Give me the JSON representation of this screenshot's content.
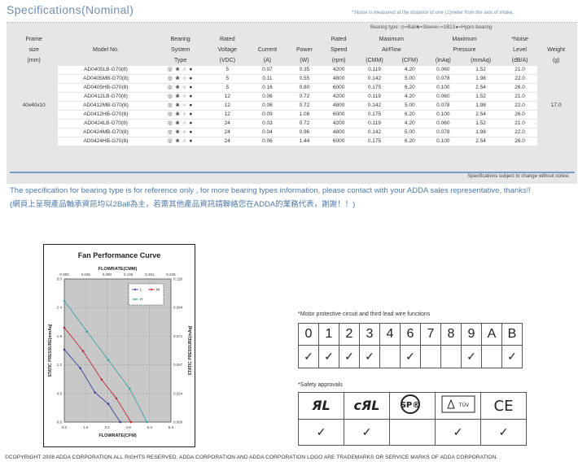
{
  "header": {
    "title": "Specifications(Nominal)",
    "noise_note": "*:Noise is measured at the distance of one (1)meter from the axis of intake.",
    "bearing_legend": "Bearing type: ◎=Ball❀=Sleeve○=1B1S●=Hypro bearing"
  },
  "spec_table": {
    "headers": [
      [
        "Frame",
        "size",
        "(mm)"
      ],
      [
        "",
        "Model No.",
        ""
      ],
      [
        "Bearing",
        "System",
        "Type"
      ],
      [
        "Rated",
        "Voltage",
        "(VDC)"
      ],
      [
        "",
        "Current",
        "(A)"
      ],
      [
        "",
        "Power",
        "(W)"
      ],
      [
        "Rated",
        "Speed",
        "(rpm)"
      ],
      [
        "Maximum",
        "AirFlow",
        ""
      ],
      [
        "Maximum",
        "Pressure",
        ""
      ],
      [
        "*Noise",
        "Level",
        "(dB/A)"
      ],
      [
        "",
        "Weight",
        "(g)"
      ]
    ],
    "airflow_units": [
      "(CMM)",
      "(CFM)"
    ],
    "pressure_units": [
      "(InAq)",
      "(mmAq)"
    ],
    "frame_size": "40x40x10",
    "weight": "17.0",
    "bearing_icons": "◎ ❀ ○ ●",
    "rows": [
      {
        "model": "AD0405LB-G70(8)",
        "voltage": "5",
        "current": "0.07",
        "power": "0.35",
        "speed": "4200",
        "cmm": "0.119",
        "cfm": "4.20",
        "inaq": "0.060",
        "mmaq": "1.52",
        "noise": "21.0"
      },
      {
        "model": "AD0405MB-G70(8)",
        "voltage": "5",
        "current": "0.11",
        "power": "0.55",
        "speed": "4800",
        "cmm": "0.142",
        "cfm": "5.00",
        "inaq": "0.078",
        "mmaq": "1.98",
        "noise": "22.0"
      },
      {
        "model": "AD0405HB-G70(8)",
        "voltage": "5",
        "current": "0.16",
        "power": "0.80",
        "speed": "6000",
        "cmm": "0.175",
        "cfm": "6.20",
        "inaq": "0.100",
        "mmaq": "2.54",
        "noise": "26.0"
      },
      {
        "model": "AD0412LB-G70(8)",
        "voltage": "12",
        "current": "0.06",
        "power": "0.72",
        "speed": "4200",
        "cmm": "0.119",
        "cfm": "4.20",
        "inaq": "0.060",
        "mmaq": "1.52",
        "noise": "21.0"
      },
      {
        "model": "AD0412MB-G70(8)",
        "voltage": "12",
        "current": "0.06",
        "power": "0.72",
        "speed": "4800",
        "cmm": "0.142",
        "cfm": "5.00",
        "inaq": "0.078",
        "mmaq": "1.98",
        "noise": "22.0"
      },
      {
        "model": "AD0412HB-G70(8)",
        "voltage": "12",
        "current": "0.09",
        "power": "1.08",
        "speed": "6000",
        "cmm": "0.175",
        "cfm": "6.20",
        "inaq": "0.100",
        "mmaq": "2.54",
        "noise": "26.0"
      },
      {
        "model": "AD0424LB-G70(8)",
        "voltage": "24",
        "current": "0.03",
        "power": "0.72",
        "speed": "4200",
        "cmm": "0.119",
        "cfm": "4.20",
        "inaq": "0.060",
        "mmaq": "1.52",
        "noise": "21.0"
      },
      {
        "model": "AD0424MB-G70(8)",
        "voltage": "24",
        "current": "0.04",
        "power": "0.96",
        "speed": "4800",
        "cmm": "0.142",
        "cfm": "5.00",
        "inaq": "0.078",
        "mmaq": "1.98",
        "noise": "22.0"
      },
      {
        "model": "AD0424HB-G70(8)",
        "voltage": "24",
        "current": "0.06",
        "power": "1.44",
        "speed": "6000",
        "cmm": "0.175",
        "cfm": "6.20",
        "inaq": "0.100",
        "mmaq": "2.54",
        "noise": "26.0"
      }
    ],
    "footnote": "Specifications subject to change without notice."
  },
  "info": {
    "english": "The specification for bearing type is for reference only , for more bearing types information, please contact with your ADDA sales representative, thanks!!",
    "chinese": "(網頁上呈現產品軸承資訊均以2Ball為主，若需其他產品資訊請聯絡您在ADDA的業務代表，謝謝！！)"
  },
  "motor_protective": {
    "label": "*Motor protective circuit and third lead wire functions",
    "codes": [
      "0",
      "1",
      "2",
      "3",
      "4",
      "6",
      "7",
      "8",
      "9",
      "A",
      "B"
    ],
    "checked": [
      true,
      true,
      true,
      true,
      false,
      true,
      false,
      false,
      true,
      false,
      true
    ],
    "check_mark": "✓"
  },
  "safety": {
    "label": "*Safety approvals",
    "logos": [
      "UR",
      "cUR",
      "CSA",
      "TUV",
      "CE"
    ],
    "logo_text": {
      "ur": "ЯL",
      "cur": "cЯL",
      "csa": "SP®",
      "tuv": "TÜV",
      "ce": "CE"
    },
    "checked": [
      true,
      true,
      false,
      true,
      true
    ],
    "check_mark": "✓"
  },
  "chart_data": {
    "type": "line",
    "title": "Fan Performance Curve",
    "xlabel": "FLOWRATE(CFM)",
    "x2label": "FLOWRATE(CMM)",
    "ylabel": "STATIC PRESSURE(mmAq)",
    "y2label": "STATIC PRESSURE(inAq)",
    "xlim": [
      0,
      8.0
    ],
    "ylim": [
      0,
      3.0
    ],
    "x_ticks": [
      "0.0",
      "1.6",
      "3.2",
      "4.8",
      "6.4",
      "8.0"
    ],
    "x2_ticks": [
      "0.000",
      "0.045",
      "0.090",
      "0.136",
      "0.181",
      "0.226"
    ],
    "y_ticks": [
      "0.0",
      "0.6",
      "1.2",
      "1.8",
      "2.4",
      "3.0"
    ],
    "y2_ticks": [
      "0.000",
      "0.024",
      "0.047",
      "0.071",
      "0.094",
      "0.118"
    ],
    "grid": true,
    "legend_position": "top-right",
    "series": [
      {
        "name": "L",
        "color": "#3a3f9e",
        "x": [
          0,
          1.2,
          2.3,
          3.3,
          4.2
        ],
        "y": [
          1.52,
          1.13,
          0.62,
          0.38,
          0
        ]
      },
      {
        "name": "M",
        "color": "#c0283a",
        "x": [
          0,
          1.4,
          2.8,
          3.9,
          5.0
        ],
        "y": [
          1.98,
          1.49,
          0.89,
          0.5,
          0
        ]
      },
      {
        "name": "H",
        "color": "#3aa3a6",
        "x": [
          0,
          1.7,
          3.3,
          4.9,
          6.2
        ],
        "y": [
          2.54,
          1.9,
          1.3,
          0.7,
          0
        ]
      }
    ]
  },
  "footer": {
    "copyright": "©COPYRIGHT 2008 ADDA CORPORATION.ALL RIGHTS RESERVED. ADDA CORPORATION AND ADDA  CORPORATION LOGO ARE TRADEMARKS OR SERVICE MARKS OF ADDA CORPORATION."
  }
}
